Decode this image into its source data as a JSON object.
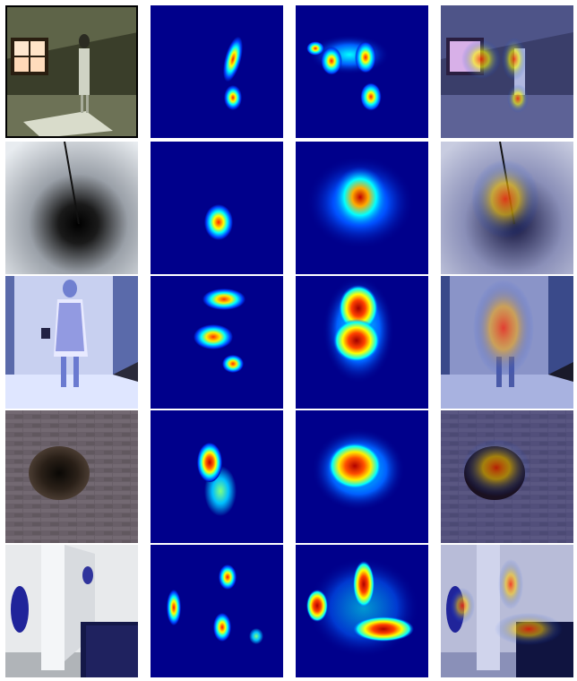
{
  "grid": {
    "rows": 5,
    "columns": 4,
    "column_contents": [
      "input-photo",
      "ground-truth-heatmap",
      "predicted-heatmap",
      "heatmap-overlay"
    ],
    "colors": {
      "heatmap_background": "#00008b",
      "heatmap_ramp": [
        "#00008b",
        "#0000ff",
        "#00bfff",
        "#7fff7f",
        "#ffff00",
        "#ff7f00",
        "#ff0000",
        "#8b0000"
      ]
    }
  },
  "rows": [
    {
      "scene": "woman-standing-in-attic-room-with-window"
    },
    {
      "scene": "dark-tunnel-vortex-with-rope"
    },
    {
      "scene": "runway-model-in-dress"
    },
    {
      "scene": "hole-in-brick-wall"
    },
    {
      "scene": "gallery-with-blue-sculptures"
    }
  ]
}
